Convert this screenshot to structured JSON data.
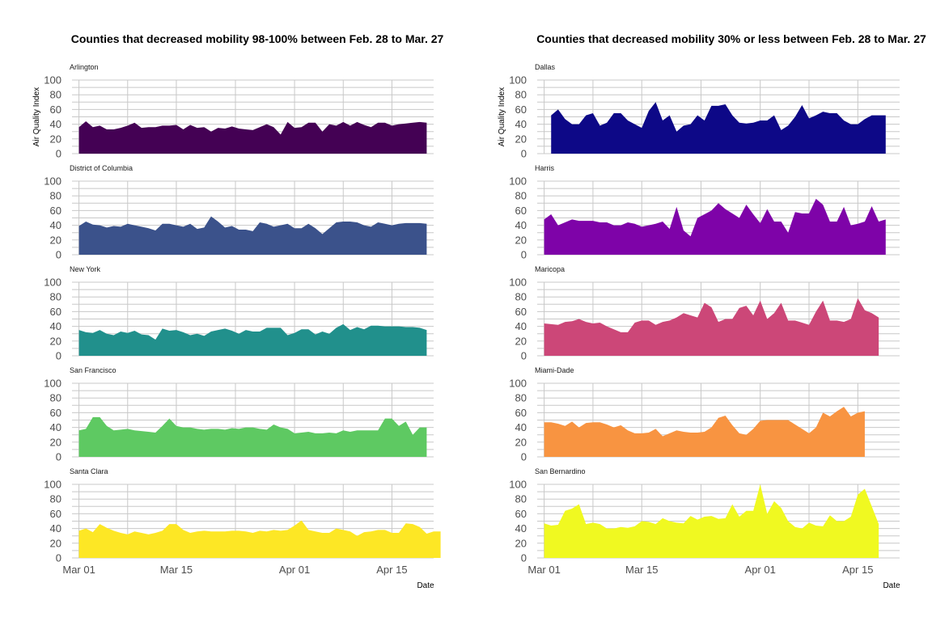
{
  "chart_data": [
    {
      "type": "area",
      "title": "Counties that decreased mobility 98-100% between Feb. 28 to Mar. 27",
      "xlabel": "Date",
      "ylabel": "Air Quality Index",
      "x_range": [
        "2020-02-29",
        "2020-04-21"
      ],
      "ylim": [
        0,
        100
      ],
      "y_ticks": [
        0,
        20,
        40,
        60,
        80,
        100
      ],
      "x_ticks": [
        {
          "date": "2020-03-01",
          "label": "Mar 01"
        },
        {
          "date": "2020-03-15",
          "label": "Mar 15"
        },
        {
          "date": "2020-04-01",
          "label": "Apr 01"
        },
        {
          "date": "2020-04-15",
          "label": "Apr 15"
        }
      ],
      "grid": true,
      "facets": [
        {
          "name": "Arlington",
          "color": "#440154",
          "start": "2020-03-01",
          "values": [
            36,
            44,
            36,
            38,
            33,
            33,
            35,
            38,
            42,
            35,
            36,
            36,
            38,
            38,
            39,
            33,
            39,
            35,
            36,
            30,
            35,
            34,
            37,
            34,
            33,
            32,
            36,
            40,
            36,
            26,
            43,
            35,
            36,
            42,
            42,
            30,
            40,
            38,
            43,
            38,
            43,
            39,
            36,
            42,
            42,
            38,
            40,
            41,
            42,
            43,
            42
          ]
        },
        {
          "name": "District of Columbia",
          "color": "#3b528b",
          "start": "2020-03-01",
          "values": [
            39,
            45,
            41,
            40,
            37,
            39,
            38,
            42,
            40,
            38,
            36,
            33,
            42,
            42,
            40,
            38,
            42,
            35,
            37,
            52,
            45,
            37,
            39,
            34,
            34,
            32,
            44,
            42,
            38,
            40,
            42,
            36,
            36,
            42,
            36,
            28,
            36,
            44,
            45,
            45,
            44,
            40,
            38,
            44,
            42,
            40,
            42,
            43,
            43,
            43,
            42
          ]
        },
        {
          "name": "New York",
          "color": "#21908c",
          "start": "2020-03-01",
          "values": [
            35,
            32,
            31,
            35,
            30,
            28,
            33,
            31,
            34,
            29,
            28,
            22,
            37,
            34,
            35,
            32,
            28,
            30,
            27,
            33,
            35,
            37,
            34,
            30,
            35,
            33,
            33,
            38,
            38,
            38,
            28,
            31,
            36,
            36,
            29,
            33,
            30,
            38,
            43,
            35,
            39,
            36,
            41,
            41,
            40,
            40,
            40,
            39,
            39,
            38,
            35
          ]
        },
        {
          "name": "San Francisco",
          "color": "#5ec962",
          "start": "2020-03-01",
          "values": [
            36,
            38,
            54,
            54,
            42,
            36,
            37,
            38,
            36,
            35,
            34,
            33,
            42,
            52,
            42,
            40,
            40,
            38,
            37,
            38,
            38,
            37,
            39,
            38,
            40,
            40,
            38,
            37,
            44,
            40,
            38,
            32,
            33,
            34,
            32,
            32,
            33,
            32,
            36,
            34,
            36,
            36,
            36,
            36,
            52,
            52,
            42,
            48,
            30,
            40,
            40
          ]
        },
        {
          "name": "Santa Clara",
          "color": "#fde725",
          "start": "2020-03-01",
          "values": [
            37,
            40,
            35,
            46,
            41,
            37,
            34,
            32,
            36,
            34,
            32,
            34,
            37,
            46,
            46,
            38,
            34,
            36,
            37,
            36,
            36,
            36,
            37,
            37,
            36,
            34,
            37,
            36,
            38,
            37,
            38,
            44,
            51,
            38,
            36,
            34,
            34,
            40,
            38,
            36,
            30,
            35,
            36,
            38,
            38,
            34,
            34,
            47,
            46,
            42,
            33,
            36,
            36
          ]
        }
      ]
    },
    {
      "type": "area",
      "title": "Counties that decreased mobility 30% or less between Feb. 28 to Mar. 27",
      "xlabel": "Date",
      "ylabel": "Air Quality Index",
      "x_range": [
        "2020-02-29",
        "2020-04-21"
      ],
      "ylim": [
        0,
        100
      ],
      "y_ticks": [
        0,
        20,
        40,
        60,
        80,
        100
      ],
      "x_ticks": [
        {
          "date": "2020-03-01",
          "label": "Mar 01"
        },
        {
          "date": "2020-03-15",
          "label": "Mar 15"
        },
        {
          "date": "2020-04-01",
          "label": "Apr 01"
        },
        {
          "date": "2020-04-15",
          "label": "Apr 15"
        }
      ],
      "grid": true,
      "facets": [
        {
          "name": "Dallas",
          "color": "#0d0887",
          "start": "2020-03-02",
          "values": [
            52,
            60,
            47,
            40,
            40,
            52,
            55,
            38,
            42,
            55,
            55,
            45,
            40,
            35,
            58,
            70,
            45,
            52,
            30,
            38,
            40,
            52,
            45,
            65,
            65,
            67,
            52,
            42,
            41,
            42,
            45,
            45,
            52,
            32,
            38,
            50,
            66,
            48,
            52,
            57,
            55,
            55,
            45,
            40,
            40,
            47,
            52,
            52,
            52
          ]
        },
        {
          "name": "Harris",
          "color": "#7e03a8",
          "start": "2020-03-01",
          "values": [
            48,
            55,
            40,
            44,
            48,
            46,
            46,
            46,
            44,
            44,
            40,
            40,
            44,
            42,
            38,
            40,
            42,
            45,
            35,
            65,
            33,
            25,
            50,
            55,
            60,
            70,
            62,
            56,
            50,
            68,
            55,
            43,
            62,
            45,
            45,
            30,
            58,
            56,
            56,
            76,
            68,
            45,
            45,
            65,
            40,
            42,
            45,
            66,
            45,
            48
          ]
        },
        {
          "name": "Maricopa",
          "color": "#cc4778",
          "start": "2020-03-01",
          "values": [
            44,
            43,
            42,
            46,
            47,
            50,
            46,
            44,
            45,
            40,
            36,
            32,
            32,
            45,
            48,
            48,
            42,
            46,
            48,
            52,
            58,
            55,
            52,
            72,
            66,
            46,
            50,
            50,
            65,
            68,
            55,
            75,
            50,
            58,
            72,
            48,
            48,
            45,
            42,
            60,
            75,
            48,
            48,
            46,
            50,
            78,
            62,
            58,
            52
          ]
        },
        {
          "name": "Miami-Dade",
          "color": "#f89441",
          "start": "2020-03-01",
          "values": [
            47,
            47,
            45,
            42,
            48,
            40,
            46,
            47,
            47,
            44,
            40,
            43,
            36,
            32,
            32,
            33,
            38,
            28,
            32,
            36,
            34,
            33,
            33,
            34,
            40,
            53,
            56,
            43,
            32,
            30,
            38,
            49,
            50,
            50,
            50,
            50,
            44,
            38,
            32,
            40,
            60,
            55,
            62,
            68,
            55,
            60,
            62
          ]
        },
        {
          "name": "San Bernardino",
          "color": "#f0f921",
          "start": "2020-03-01",
          "values": [
            47,
            44,
            45,
            64,
            67,
            73,
            46,
            48,
            46,
            40,
            40,
            42,
            41,
            43,
            50,
            49,
            46,
            54,
            50,
            48,
            47,
            57,
            52,
            56,
            57,
            53,
            54,
            73,
            56,
            64,
            64,
            100,
            60,
            77,
            68,
            50,
            42,
            40,
            48,
            44,
            43,
            58,
            50,
            50,
            56,
            86,
            94,
            70,
            46
          ]
        }
      ]
    }
  ]
}
